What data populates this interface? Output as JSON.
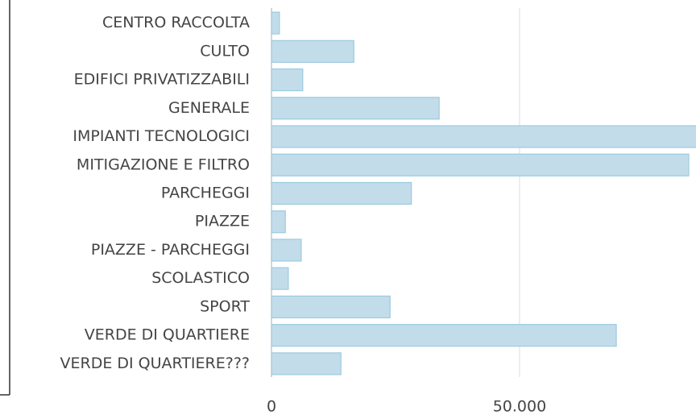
{
  "chart_data": {
    "type": "bar",
    "orientation": "horizontal",
    "categories": [
      "CENTRO RACCOLTA",
      "CULTO",
      "EDIFICI PRIVATIZZABILI",
      "GENERALE",
      "IMPIANTI TECNOLOGICI",
      "MITIGAZIONE E FILTRO",
      "PARCHEGGI",
      "PIAZZE",
      "PIAZZE - PARCHEGGI",
      "SCOLASTICO",
      "SPORT",
      "VERDE DI QUARTIERE",
      "VERDE DI QUARTIERE???"
    ],
    "values": [
      1600,
      16600,
      6300,
      33800,
      88000,
      84100,
      28200,
      2800,
      6000,
      3400,
      23900,
      69500,
      14000
    ],
    "color": "#c2dcea",
    "xlim": [
      0,
      85560
    ],
    "xticks": [
      0,
      {
        "value": 50000,
        "label": "50.000"
      }
    ],
    "grid": true
  }
}
